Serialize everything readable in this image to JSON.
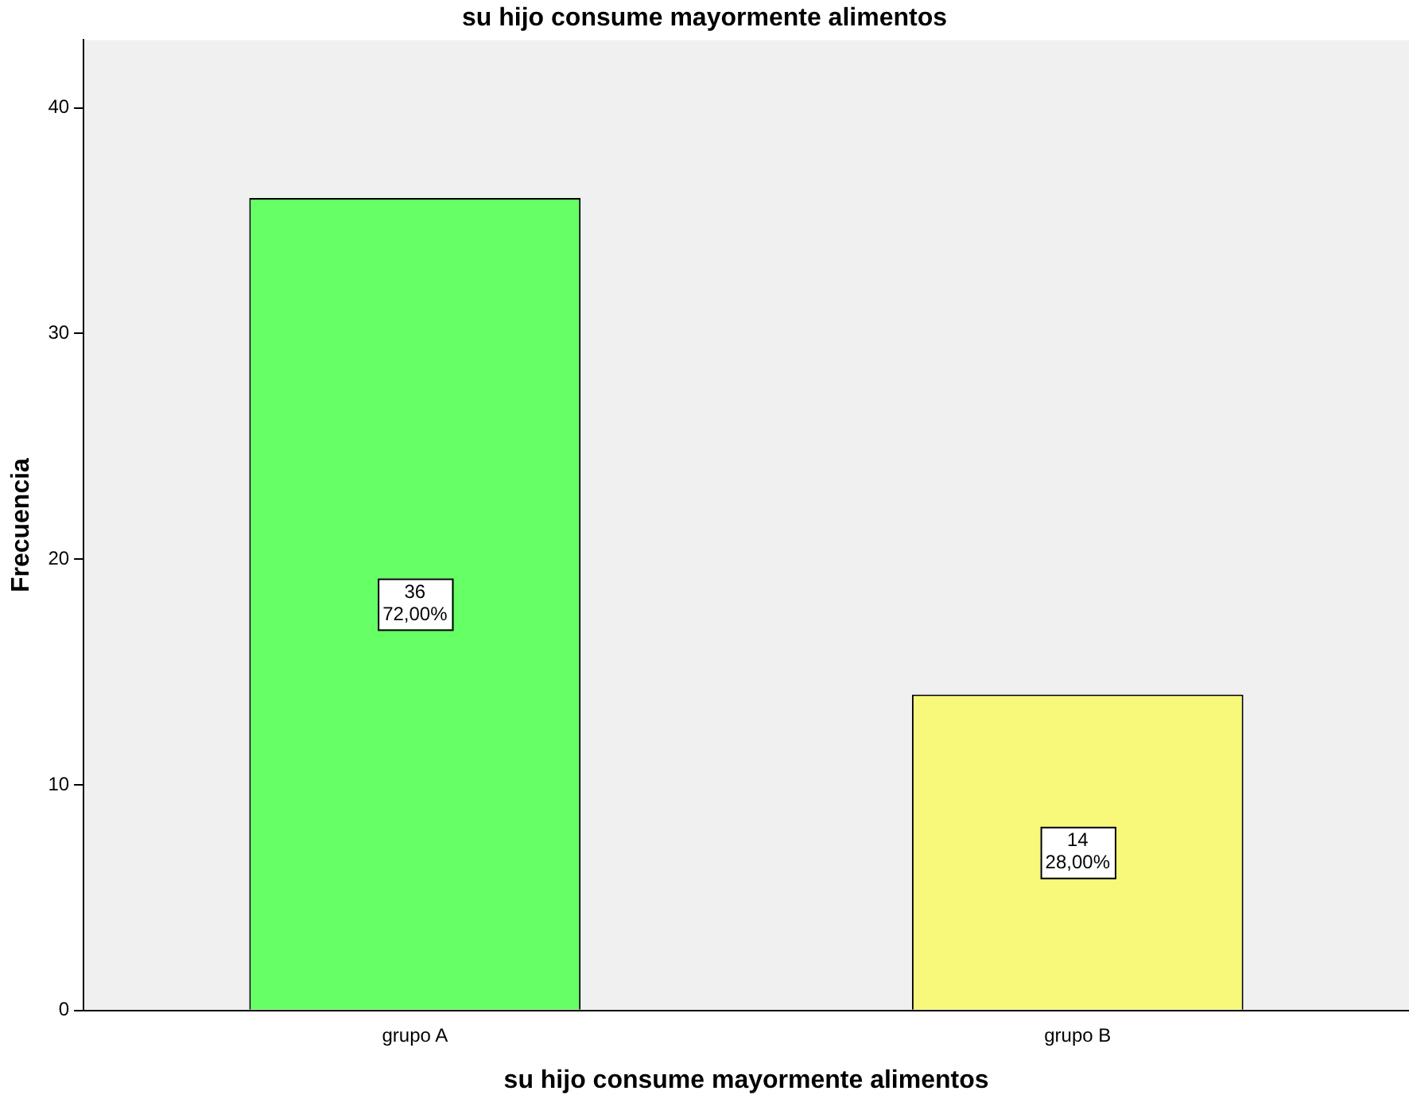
{
  "chart_data": {
    "type": "bar",
    "title": "su hijo consume mayormente alimentos",
    "xlabel": "su hijo consume mayormente alimentos",
    "ylabel": "Frecuencia",
    "categories": [
      "grupo A",
      "grupo B"
    ],
    "values": [
      36,
      14
    ],
    "colors": [
      "#66ff66",
      "#f8f87a"
    ],
    "value_labels": [
      "36\n72,00%",
      "14\n28,00%"
    ],
    "ylim": [
      0,
      43
    ],
    "yticks": [
      0,
      10,
      20,
      30,
      40
    ],
    "grid": false,
    "legend": false
  }
}
